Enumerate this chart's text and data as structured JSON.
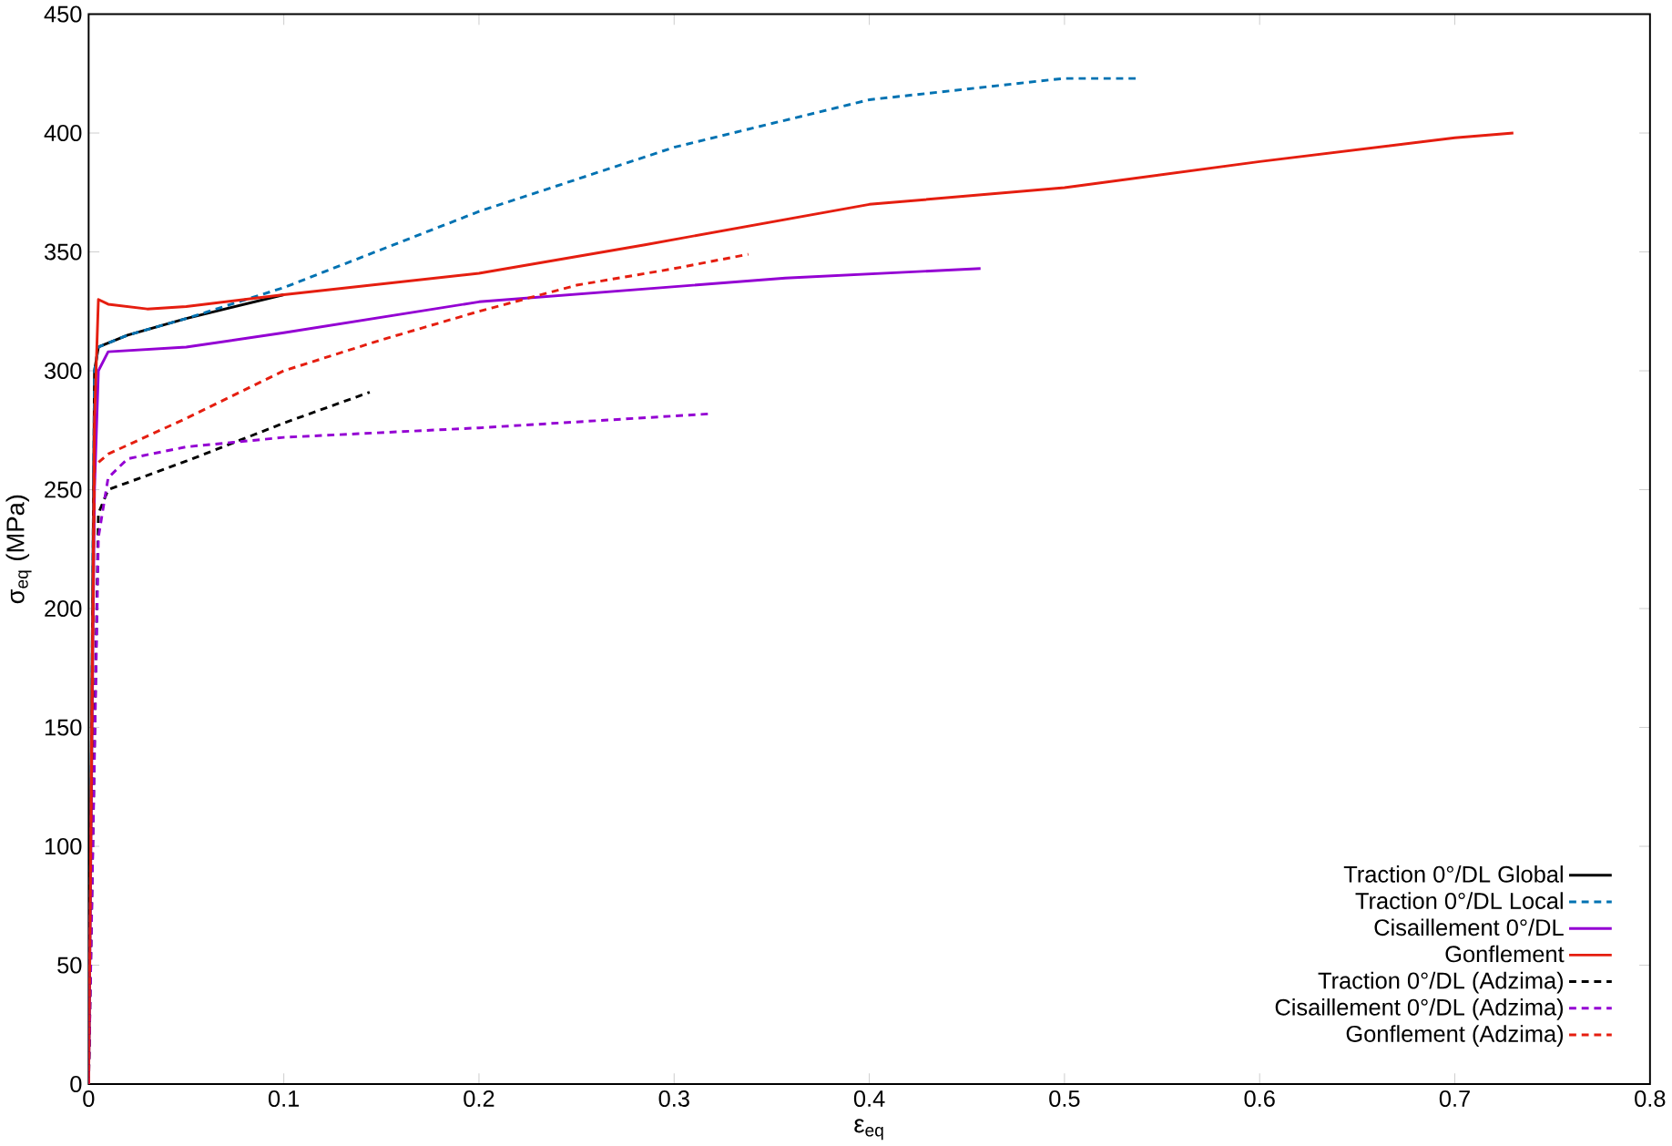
{
  "chart_data": {
    "type": "line",
    "xlabel": "ε$_{eq}$",
    "ylabel": "σ$_{eq}$ (MPa)",
    "xlim": [
      0,
      0.8
    ],
    "ylim": [
      0,
      450
    ],
    "xticks": [
      0,
      0.1,
      0.2,
      0.3,
      0.4,
      0.5,
      0.6,
      0.7,
      0.8
    ],
    "yticks": [
      0,
      50,
      100,
      150,
      200,
      250,
      300,
      350,
      400,
      450
    ],
    "grid": false,
    "legend": "bottom right",
    "marker": "none",
    "series": [
      {
        "name": "Traction 0°/DL Global",
        "color": "#000000",
        "line_style": "solid",
        "x": [
          0,
          0.003,
          0.005,
          0.02,
          0.05,
          0.1
        ],
        "values": [
          0,
          300,
          310,
          315,
          322,
          332
        ]
      },
      {
        "name": "Traction 0°/DL Local",
        "color": "#0072b2",
        "line_style": "dashed",
        "x": [
          0,
          0.003,
          0.005,
          0.02,
          0.05,
          0.1,
          0.2,
          0.3,
          0.4,
          0.5,
          0.538
        ],
        "values": [
          0,
          300,
          310,
          315,
          322,
          335,
          367,
          394,
          414,
          423,
          423
        ]
      },
      {
        "name": "Cisaillement 0°/DL",
        "color": "#9400d3",
        "line_style": "solid",
        "x": [
          0,
          0.003,
          0.005,
          0.01,
          0.05,
          0.1,
          0.2,
          0.357,
          0.457
        ],
        "values": [
          0,
          250,
          300,
          308,
          310,
          316,
          329,
          339,
          343
        ]
      },
      {
        "name": "Gonflement",
        "color": "#e51e10",
        "line_style": "solid",
        "x": [
          0,
          0.003,
          0.005,
          0.01,
          0.03,
          0.05,
          0.1,
          0.2,
          0.285,
          0.4,
          0.5,
          0.6,
          0.7,
          0.73
        ],
        "values": [
          0,
          280,
          330,
          328,
          326,
          327,
          332,
          341,
          353,
          370,
          377,
          388,
          398,
          400
        ]
      },
      {
        "name": "Traction 0°/DL (Adzima)",
        "color": "#000000",
        "line_style": "dashed",
        "x": [
          0,
          0.005,
          0.01,
          0.05,
          0.1,
          0.144
        ],
        "values": [
          0,
          240,
          250,
          262,
          278,
          291
        ]
      },
      {
        "name": "Cisaillement 0°/DL (Adzima)",
        "color": "#9400d3",
        "line_style": "dashed",
        "x": [
          0,
          0.005,
          0.01,
          0.02,
          0.05,
          0.1,
          0.2,
          0.32
        ],
        "values": [
          0,
          230,
          255,
          263,
          268,
          272,
          276,
          282
        ]
      },
      {
        "name": "Gonflement (Adzima)",
        "color": "#e51e10",
        "line_style": "dashed",
        "x": [
          0,
          0.003,
          0.01,
          0.05,
          0.1,
          0.15,
          0.2,
          0.25,
          0.3,
          0.338
        ],
        "values": [
          0,
          260,
          265,
          280,
          300,
          313,
          325,
          336,
          343,
          349
        ]
      }
    ]
  }
}
